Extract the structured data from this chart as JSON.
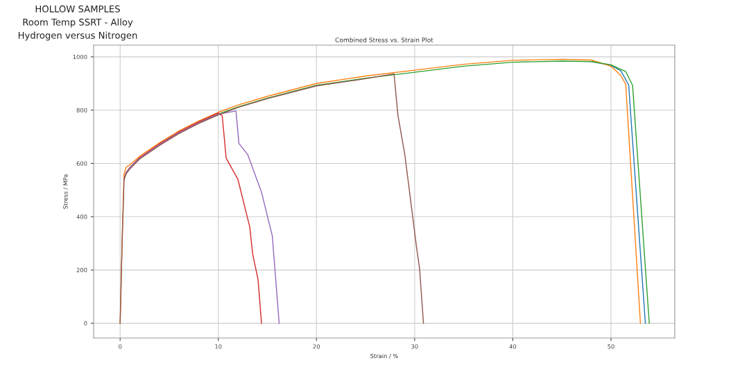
{
  "chart_data": {
    "type": "line",
    "title": "Combined Stress vs. Strain Plot",
    "xlabel": "Strain / %",
    "ylabel": "Stress / MPa",
    "annotations": [
      "HOLLOW SAMPLES",
      "Room Temp SSRT - Alloy",
      "Hydrogen versus Nitrogen"
    ],
    "xlim": [
      -2.7,
      56.5
    ],
    "ylim": [
      -55,
      1044
    ],
    "xticks": [
      0,
      10,
      20,
      30,
      40,
      50
    ],
    "yticks": [
      0,
      200,
      400,
      600,
      800,
      1000
    ],
    "grid": true,
    "marker": "none",
    "line_style": "solid",
    "series": [
      {
        "color": "#1f77b4",
        "x": [
          48,
          50,
          51,
          51.8,
          53.5
        ],
        "values": [
          982,
          968,
          948,
          895,
          0
        ]
      },
      {
        "color": "#ff7f0e",
        "x": [
          0,
          0.2,
          0.4,
          0.6,
          1,
          2,
          4,
          6,
          8,
          10,
          12,
          15,
          20,
          25,
          30,
          35,
          40,
          45,
          48,
          50,
          51,
          51.5,
          53.0
        ],
        "values": [
          0,
          300,
          560,
          585,
          595,
          627,
          677,
          722,
          759,
          792,
          819,
          852,
          900,
          928,
          950,
          972,
          987,
          991,
          988,
          965,
          930,
          897,
          0
        ]
      },
      {
        "color": "#2ca02c",
        "x": [
          8,
          10,
          12,
          15,
          20,
          25,
          30,
          35,
          40,
          45,
          48,
          50,
          51.5,
          52.2,
          53.9
        ],
        "values": [
          752,
          785,
          812,
          845,
          893,
          920,
          942,
          965,
          980,
          984,
          982,
          970,
          945,
          893,
          0
        ]
      },
      {
        "color": "#d62728",
        "x": [
          0.4,
          0.6,
          1,
          2,
          4,
          6,
          8,
          10,
          10.4,
          10.8,
          12,
          13.2,
          13.5,
          14.05,
          14.4
        ],
        "values": [
          540,
          565,
          585,
          622,
          673,
          718,
          756,
          789,
          779,
          620,
          540,
          362,
          260,
          164,
          0
        ]
      },
      {
        "color": "#9467bd",
        "x": [
          0.4,
          0.6,
          1,
          2,
          4,
          6,
          8,
          10,
          11.8,
          12.1,
          13,
          14.4,
          15.5,
          16.2
        ],
        "values": [
          540,
          565,
          585,
          620,
          670,
          715,
          752,
          785,
          797,
          675,
          633,
          492,
          328,
          0
        ]
      },
      {
        "color": "#8c564b",
        "x": [
          0,
          0.2,
          0.4,
          0.6,
          1,
          2,
          4,
          6,
          8,
          10,
          12,
          15,
          20,
          25,
          27.9,
          28.3,
          29,
          30.2,
          30.5,
          30.9
        ],
        "values": [
          0,
          300,
          540,
          560,
          580,
          617,
          667,
          712,
          750,
          782,
          810,
          843,
          891,
          918,
          936,
          780,
          633,
          284,
          206,
          0
        ]
      }
    ]
  }
}
